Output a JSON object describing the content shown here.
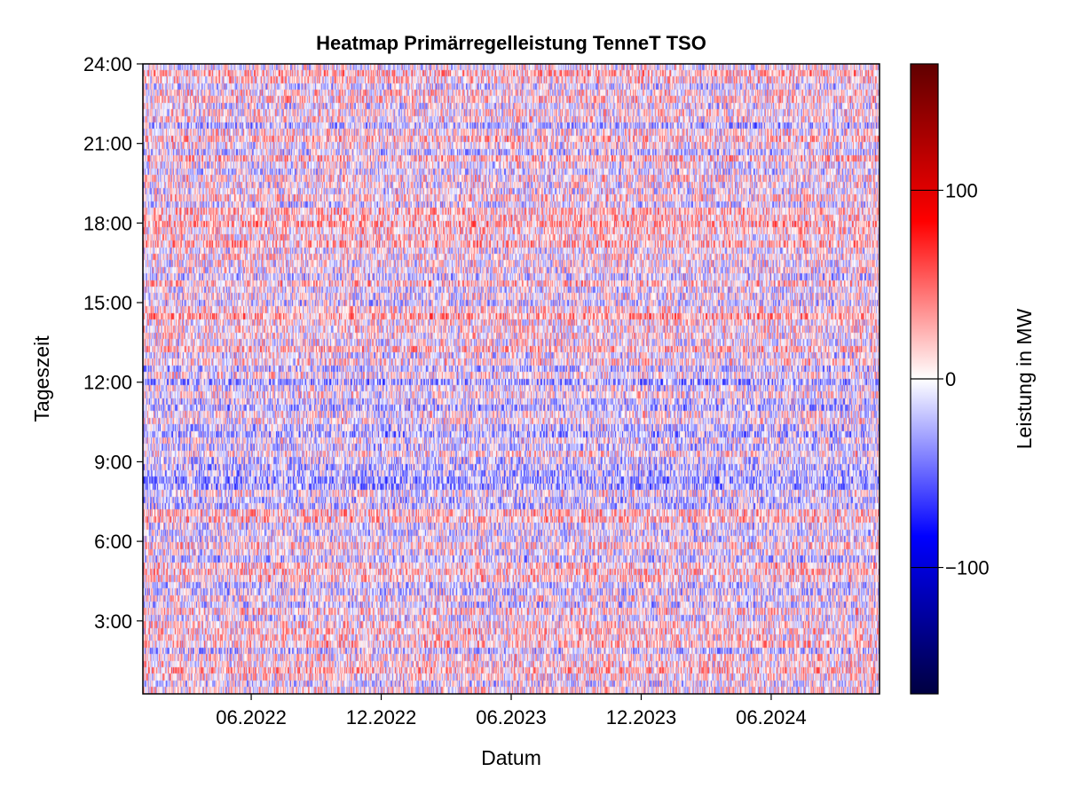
{
  "chart_data": {
    "type": "heatmap",
    "title": "Heatmap Primärregelleistung TenneT TSO",
    "xlabel": "Datum",
    "ylabel": "Tageszeit",
    "x_tick_labels": [
      "06.2022",
      "12.2022",
      "06.2023",
      "12.2023",
      "06.2024"
    ],
    "x_ticks_months_from_2022_01": [
      5,
      11,
      17,
      23,
      29
    ],
    "x_range": [
      "2022-01",
      "2024-11"
    ],
    "y_tick_labels": [
      "3:00",
      "6:00",
      "9:00",
      "12:00",
      "15:00",
      "18:00",
      "21:00",
      "24:00"
    ],
    "y_ticks_hours": [
      3,
      6,
      9,
      12,
      15,
      18,
      21,
      24
    ],
    "y_range_hours": [
      0.25,
      24
    ],
    "time_resolution_minutes": 15,
    "colorbar": {
      "label": "Leistung in MW",
      "tick_labels": [
        "−100",
        "0",
        "100"
      ],
      "ticks": [
        -100,
        0,
        100
      ],
      "range": [
        -167,
        167
      ],
      "colormap": [
        "#000040",
        "#0000ff",
        "#ffffff",
        "#ff0000",
        "#600000"
      ]
    },
    "grid": false
  }
}
